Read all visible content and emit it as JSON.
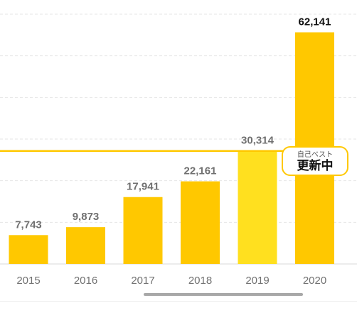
{
  "chart_data": {
    "type": "bar",
    "categories": [
      "2015",
      "2016",
      "2017",
      "2018",
      "2019",
      "2020"
    ],
    "values": [
      7743,
      9873,
      17941,
      22161,
      30314,
      62141
    ],
    "value_labels": [
      "7,743",
      "9,873",
      "17,941",
      "22,161",
      "30,314",
      "62,141"
    ],
    "title": "",
    "xlabel": "",
    "ylabel": "",
    "ylim": [
      0,
      67000
    ],
    "grid": true,
    "reference_line": {
      "value": 30314
    },
    "highlight": {
      "index": 5,
      "line1": "自己ベスト",
      "line2": "更新中"
    },
    "colors": {
      "bar": "#ffc800",
      "bar_previous_best": "#ffe01f",
      "reference_line": "#ffc800",
      "value_label": "#707070",
      "value_label_top": "#111111",
      "tick_label": "#707070",
      "grid": "#e6e6e6",
      "axis": "#d9d9d9"
    }
  }
}
